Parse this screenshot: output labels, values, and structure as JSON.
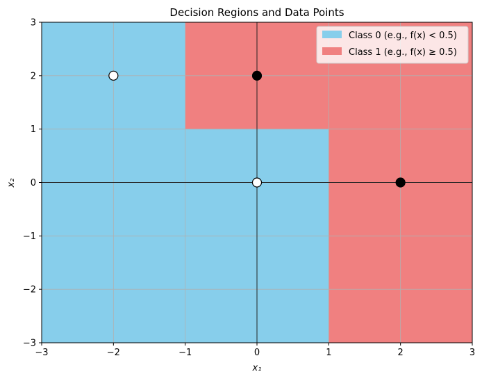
{
  "chart_data": {
    "type": "scatter",
    "title": "Decision Regions and Data Points",
    "xlabel": "x₁",
    "ylabel": "x₂",
    "xlim": [
      -3,
      3
    ],
    "ylim": [
      -3,
      3
    ],
    "xticks": [
      -3,
      -2,
      -1,
      0,
      1,
      2,
      3
    ],
    "yticks": [
      -3,
      -2,
      -1,
      0,
      1,
      2,
      3
    ],
    "xtick_labels": [
      "−3",
      "−2",
      "−1",
      "0",
      "1",
      "2",
      "3"
    ],
    "ytick_labels": [
      "−3",
      "−2",
      "−1",
      "0",
      "1",
      "2",
      "3"
    ],
    "grid": true,
    "legend_position": "top-right",
    "colors": {
      "class0": "#87ceeb",
      "class1": "#f08080"
    },
    "regions": [
      {
        "class": 1,
        "x": [
          -1,
          1
        ],
        "y": [
          1,
          3
        ]
      },
      {
        "class": 1,
        "x": [
          1,
          3
        ],
        "y": [
          -3,
          3
        ]
      }
    ],
    "legend": [
      {
        "label": "Class 0 (e.g., f(x) < 0.5)",
        "class": 0
      },
      {
        "label": "Class 1 (e.g., f(x) ≥ 0.5)",
        "class": 1
      }
    ],
    "points": [
      {
        "x": -2,
        "y": 2,
        "class": 0
      },
      {
        "x": 0,
        "y": 0,
        "class": 0
      },
      {
        "x": 0,
        "y": 2,
        "class": 1
      },
      {
        "x": 2,
        "y": 0,
        "class": 1
      }
    ]
  }
}
